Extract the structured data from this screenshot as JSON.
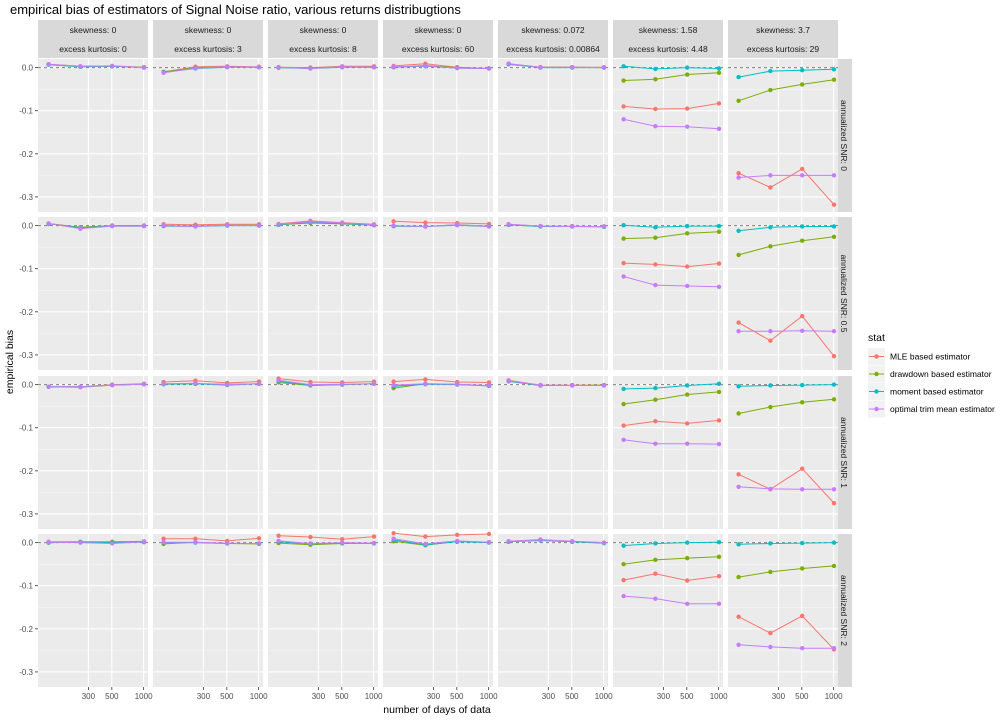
{
  "chart_data": {
    "type": "line",
    "title": "empirical bias of estimators of Signal Noise ratio, various returns distribugtions",
    "xlabel": "number of days of data",
    "ylabel": "empirical bias",
    "x_scale": "log",
    "xlim": [
      100,
      1100
    ],
    "ylim": [
      -0.335,
      0.02
    ],
    "x": [
      126,
      252,
      504,
      1008
    ],
    "x_ticks": [
      300,
      500,
      1000
    ],
    "x_tick_labels": [
      "300",
      "500",
      "1000"
    ],
    "y_ticks": [
      0.0,
      -0.1,
      -0.2,
      -0.3
    ],
    "y_tick_labels": [
      "0.0",
      "-0.1",
      "-0.2",
      "-0.3"
    ],
    "reference_line": 0,
    "legend_title": "stat",
    "legend_position": "right",
    "series": [
      {
        "name": "MLE based estimator",
        "color": "#F8766D"
      },
      {
        "name": "drawdown based estimator",
        "color": "#7CAE00"
      },
      {
        "name": "moment based estimator",
        "color": "#00BFC4"
      },
      {
        "name": "optimal trim mean estimator",
        "color": "#C77CFF"
      }
    ],
    "columns": [
      {
        "skewness_label": "skewness: 0",
        "kurtosis_label": "excess kurtosis: 0"
      },
      {
        "skewness_label": "skewness: 0",
        "kurtosis_label": "excess kurtosis: 3"
      },
      {
        "skewness_label": "skewness: 0",
        "kurtosis_label": "excess kurtosis: 8"
      },
      {
        "skewness_label": "skewness: 0",
        "kurtosis_label": "excess kurtosis: 60"
      },
      {
        "skewness_label": "skewness: 0.072",
        "kurtosis_label": "excess kurtosis: 0.00864"
      },
      {
        "skewness_label": "skewness: 1.58",
        "kurtosis_label": "excess kurtosis: 4.48"
      },
      {
        "skewness_label": "skewness: 3.7",
        "kurtosis_label": "excess kurtosis: 29"
      }
    ],
    "rows": [
      {
        "label": "annualized SNR: 0"
      },
      {
        "label": "annualized SNR: 0.5"
      },
      {
        "label": "annualized SNR: 1"
      },
      {
        "label": "annualized SNR: 2"
      }
    ],
    "panels": [
      [
        [
          [
            0.008,
            0.003,
            0.004,
            0.001
          ],
          [
            0.007,
            0.002,
            0.003,
            0.001
          ],
          [
            0.007,
            0.002,
            0.003,
            0.0
          ],
          [
            0.008,
            0.003,
            0.004,
            0.0
          ]
        ],
        [
          [
            -0.01,
            0.002,
            0.003,
            0.002
          ],
          [
            -0.01,
            0.0,
            0.002,
            0.001
          ],
          [
            -0.011,
            -0.002,
            0.001,
            0.001
          ],
          [
            -0.012,
            -0.001,
            0.002,
            0.001
          ]
        ],
        [
          [
            0.001,
            0.0,
            0.003,
            0.003
          ],
          [
            0.0,
            -0.001,
            0.002,
            0.001
          ],
          [
            0.0,
            -0.002,
            0.001,
            0.001
          ],
          [
            0.001,
            -0.002,
            0.002,
            0.001
          ]
        ],
        [
          [
            0.004,
            0.009,
            0.001,
            -0.002
          ],
          [
            0.001,
            0.005,
            0.0,
            -0.002
          ],
          [
            0.001,
            0.003,
            -0.001,
            -0.002
          ],
          [
            0.002,
            0.004,
            -0.001,
            -0.002
          ]
        ],
        [
          [
            0.009,
            0.001,
            0.001,
            0.001
          ],
          [
            0.008,
            0.001,
            0.001,
            0.0
          ],
          [
            0.008,
            0.0,
            0.0,
            0.0
          ],
          [
            0.009,
            0.001,
            0.001,
            0.0
          ]
        ],
        [
          [
            -0.09,
            -0.096,
            -0.095,
            -0.083
          ],
          [
            -0.03,
            -0.027,
            -0.016,
            -0.012
          ],
          [
            0.003,
            -0.003,
            0.0,
            -0.002
          ],
          [
            -0.12,
            -0.136,
            -0.137,
            -0.142
          ]
        ],
        [
          [
            -0.245,
            -0.278,
            -0.235,
            -0.318
          ],
          [
            -0.077,
            -0.052,
            -0.039,
            -0.028
          ],
          [
            -0.022,
            -0.008,
            -0.006,
            -0.004
          ],
          [
            -0.255,
            -0.25,
            -0.25,
            -0.25
          ]
        ]
      ],
      [
        [
          [
            0.005,
            -0.004,
            0.0,
            0.0
          ],
          [
            0.004,
            -0.004,
            0.0,
            0.0
          ],
          [
            0.004,
            -0.005,
            -0.001,
            -0.001
          ],
          [
            0.005,
            -0.007,
            -0.001,
            -0.001
          ]
        ],
        [
          [
            0.003,
            0.002,
            0.003,
            0.003
          ],
          [
            0.0,
            -0.001,
            0.001,
            0.001
          ],
          [
            -0.001,
            -0.002,
            0.0,
            0.0
          ],
          [
            0.0,
            -0.002,
            0.001,
            0.0
          ]
        ],
        [
          [
            0.004,
            0.011,
            0.007,
            0.003
          ],
          [
            0.002,
            0.006,
            0.004,
            0.001
          ],
          [
            0.002,
            0.008,
            0.005,
            0.001
          ],
          [
            0.003,
            0.009,
            0.006,
            0.002
          ]
        ],
        [
          [
            0.01,
            0.007,
            0.006,
            0.004
          ],
          [
            -0.001,
            -0.002,
            0.002,
            -0.001
          ],
          [
            -0.001,
            -0.002,
            0.001,
            -0.002
          ],
          [
            0.0,
            -0.002,
            0.002,
            -0.002
          ]
        ],
        [
          [
            0.003,
            -0.001,
            -0.001,
            -0.002
          ],
          [
            0.002,
            -0.002,
            -0.002,
            -0.002
          ],
          [
            0.002,
            -0.002,
            -0.002,
            -0.003
          ],
          [
            0.003,
            -0.001,
            -0.002,
            -0.002
          ]
        ],
        [
          [
            -0.087,
            -0.09,
            -0.095,
            -0.088
          ],
          [
            -0.03,
            -0.028,
            -0.018,
            -0.014
          ],
          [
            0.001,
            -0.004,
            -0.001,
            -0.001
          ],
          [
            -0.118,
            -0.138,
            -0.14,
            -0.142
          ]
        ],
        [
          [
            -0.225,
            -0.267,
            -0.21,
            -0.303
          ],
          [
            -0.068,
            -0.048,
            -0.035,
            -0.026
          ],
          [
            -0.012,
            -0.004,
            -0.002,
            -0.002
          ],
          [
            -0.245,
            -0.245,
            -0.244,
            -0.245
          ]
        ]
      ],
      [
        [
          [
            -0.005,
            -0.005,
            0.0,
            0.002
          ],
          [
            -0.005,
            -0.006,
            -0.001,
            0.001
          ],
          [
            -0.005,
            -0.005,
            -0.001,
            0.001
          ],
          [
            -0.005,
            -0.005,
            -0.001,
            0.001
          ]
        ],
        [
          [
            0.006,
            0.009,
            0.004,
            0.007
          ],
          [
            0.001,
            0.002,
            0.001,
            0.002
          ],
          [
            0.001,
            0.002,
            -0.001,
            0.002
          ],
          [
            0.002,
            0.003,
            0.0,
            0.002
          ]
        ],
        [
          [
            0.014,
            0.006,
            0.005,
            0.007
          ],
          [
            0.005,
            -0.002,
            0.0,
            0.002
          ],
          [
            0.008,
            -0.001,
            0.0,
            0.002
          ],
          [
            0.01,
            0.0,
            0.001,
            0.002
          ]
        ],
        [
          [
            0.007,
            0.012,
            0.006,
            0.005
          ],
          [
            -0.008,
            0.002,
            0.001,
            -0.003
          ],
          [
            -0.004,
            0.001,
            0.0,
            -0.003
          ],
          [
            -0.001,
            0.002,
            0.001,
            -0.002
          ]
        ],
        [
          [
            0.01,
            -0.001,
            -0.001,
            -0.001
          ],
          [
            0.008,
            -0.002,
            -0.002,
            -0.001
          ],
          [
            0.008,
            -0.002,
            -0.002,
            -0.002
          ],
          [
            0.009,
            -0.001,
            -0.002,
            -0.002
          ]
        ],
        [
          [
            -0.095,
            -0.085,
            -0.09,
            -0.083
          ],
          [
            -0.045,
            -0.035,
            -0.023,
            -0.017
          ],
          [
            -0.01,
            -0.008,
            -0.002,
            0.002
          ],
          [
            -0.128,
            -0.137,
            -0.137,
            -0.138
          ]
        ],
        [
          [
            -0.208,
            -0.243,
            -0.195,
            -0.275
          ],
          [
            -0.067,
            -0.052,
            -0.041,
            -0.034
          ],
          [
            -0.004,
            -0.002,
            -0.001,
            0.0
          ],
          [
            -0.237,
            -0.242,
            -0.243,
            -0.243
          ]
        ]
      ],
      [
        [
          [
            0.002,
            0.002,
            0.002,
            0.003
          ],
          [
            0.0,
            0.001,
            0.001,
            0.002
          ],
          [
            0.0,
            0.001,
            0.0,
            0.001
          ],
          [
            0.001,
            0.0,
            -0.002,
            0.002
          ]
        ],
        [
          [
            0.009,
            0.009,
            0.004,
            0.01
          ],
          [
            -0.003,
            0.001,
            -0.002,
            -0.003
          ],
          [
            0.0,
            0.0,
            -0.002,
            -0.002
          ],
          [
            0.001,
            0.001,
            -0.001,
            -0.002
          ]
        ],
        [
          [
            0.016,
            0.013,
            0.008,
            0.014
          ],
          [
            -0.001,
            -0.005,
            -0.002,
            -0.001
          ],
          [
            0.002,
            -0.003,
            -0.001,
            -0.002
          ],
          [
            0.004,
            -0.002,
            0.0,
            -0.001
          ]
        ],
        [
          [
            0.022,
            0.014,
            0.018,
            0.02
          ],
          [
            0.003,
            -0.006,
            0.003,
            0.001
          ],
          [
            0.006,
            -0.005,
            0.002,
            0.0
          ],
          [
            0.009,
            -0.003,
            0.004,
            0.001
          ]
        ],
        [
          [
            0.003,
            0.007,
            0.003,
            0.0
          ],
          [
            0.002,
            0.006,
            0.002,
            -0.001
          ],
          [
            0.002,
            0.005,
            0.002,
            -0.001
          ],
          [
            0.003,
            0.006,
            0.003,
            0.0
          ]
        ],
        [
          [
            -0.087,
            -0.072,
            -0.088,
            -0.078
          ],
          [
            -0.05,
            -0.04,
            -0.036,
            -0.033
          ],
          [
            -0.007,
            -0.002,
            0.0,
            0.001
          ],
          [
            -0.124,
            -0.13,
            -0.142,
            -0.142
          ]
        ],
        [
          [
            -0.172,
            -0.21,
            -0.17,
            -0.248
          ],
          [
            -0.08,
            -0.068,
            -0.06,
            -0.054
          ],
          [
            -0.004,
            -0.002,
            -0.001,
            0.0
          ],
          [
            -0.237,
            -0.242,
            -0.245,
            -0.245
          ]
        ]
      ]
    ]
  }
}
